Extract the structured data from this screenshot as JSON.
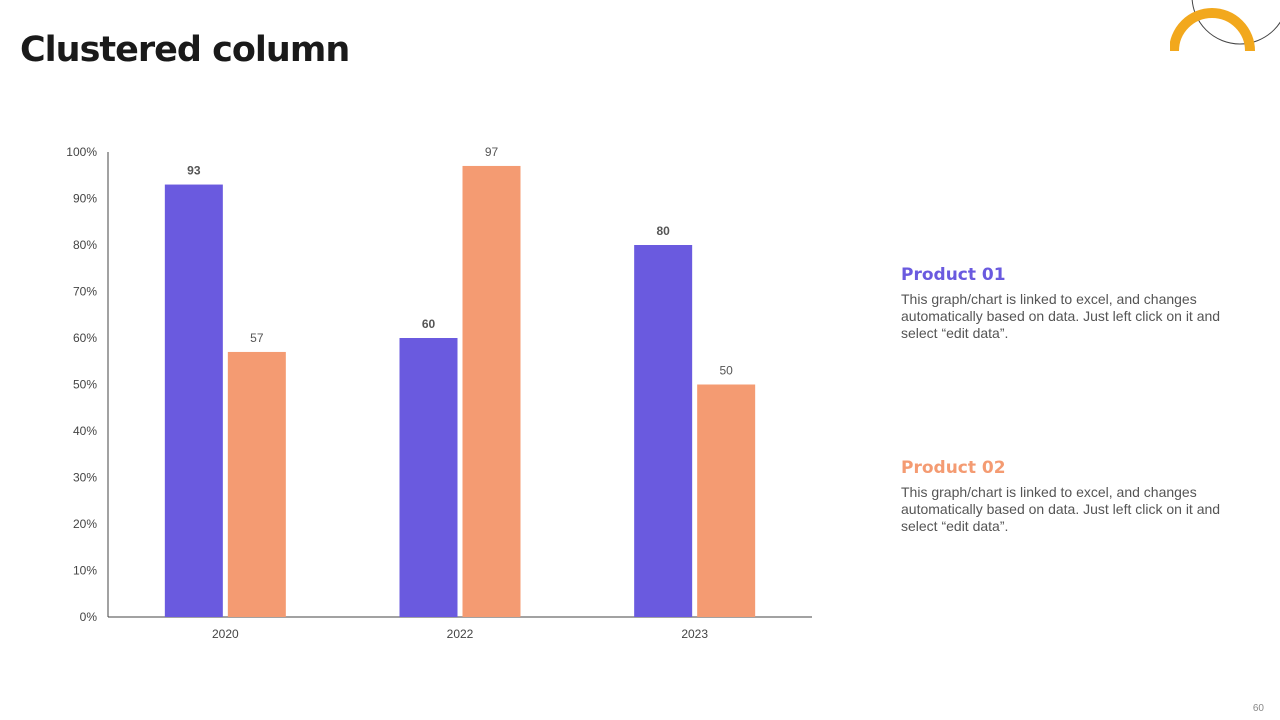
{
  "slide": {
    "title": "Clustered column",
    "page_number": "60"
  },
  "colors": {
    "product01": "#6A5ADF",
    "product02": "#F49B72",
    "accent": "#F2A81D",
    "axis": "#444444"
  },
  "chart_data": {
    "type": "bar",
    "title": "",
    "categories": [
      "2020",
      "2022",
      "2023"
    ],
    "series": [
      {
        "name": "Product 01",
        "values": [
          93,
          60,
          80
        ]
      },
      {
        "name": "Product 02",
        "values": [
          57,
          97,
          50
        ]
      }
    ],
    "ylim": [
      0,
      100
    ],
    "yticks": [
      "0%",
      "10%",
      "20%",
      "30%",
      "40%",
      "50%",
      "60%",
      "70%",
      "80%",
      "90%",
      "100%"
    ],
    "xlabel": "",
    "ylabel": "",
    "grid": false
  },
  "legend": {
    "product01": {
      "title": "Product 01",
      "text": "This graph/chart is linked to excel, and changes automatically based on data. Just left click on it and select “edit data”."
    },
    "product02": {
      "title": "Product 02",
      "text": "This graph/chart is linked to excel, and changes automatically based on data. Just left click on it and select “edit data”."
    }
  }
}
